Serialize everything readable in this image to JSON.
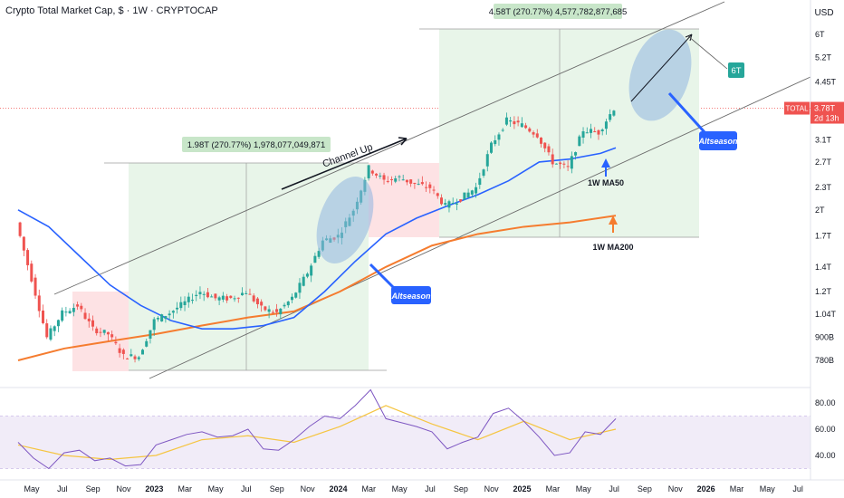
{
  "header": {
    "title": "Crypto Total Market Cap, $ · 1W · CRYPTOCAP",
    "currency": "USD"
  },
  "price_label": {
    "symbol": "TOTAL",
    "value": "3.78T",
    "countdown": "2d 13h"
  },
  "colors": {
    "up": "#26a69a",
    "down": "#ef5350",
    "ma50": "#2962ff",
    "ma200": "#f57c2f",
    "rsi": "#7e57c2",
    "rsi_ma": "#f5c542",
    "range_box": "#e8f5e9",
    "pink_box": "#fde2e4",
    "callout": "#2962ff",
    "target_badge": "#26a69a"
  },
  "chart_data": [
    {
      "type": "line",
      "y_axis": {
        "scale": "log",
        "ticks": [
          "6T",
          "5.2T",
          "4.45T",
          "3.78T",
          "3.1T",
          "2.7T",
          "2.3T",
          "2T",
          "1.7T",
          "1.4T",
          "1.2T",
          "1.04T",
          "900B",
          "780B"
        ]
      },
      "x_axis": {
        "ticks": [
          "May",
          "Jul",
          "Sep",
          "Nov",
          "2023",
          "Mar",
          "May",
          "Jul",
          "Sep",
          "Nov",
          "2024",
          "Mar",
          "May",
          "Jul",
          "Sep",
          "Nov",
          "2025",
          "Mar",
          "May",
          "Jul",
          "Sep",
          "Nov",
          "2026",
          "Mar",
          "May",
          "Jul"
        ]
      },
      "series": [
        {
          "name": "TOTAL",
          "x": [
            "2022-04",
            "2022-05",
            "2022-06",
            "2022-07",
            "2022-08",
            "2022-09",
            "2022-10",
            "2022-11",
            "2022-12",
            "2023-01",
            "2023-02",
            "2023-03",
            "2023-04",
            "2023-05",
            "2023-06",
            "2023-07",
            "2023-08",
            "2023-09",
            "2023-10",
            "2023-11",
            "2023-12",
            "2024-01",
            "2024-02",
            "2024-03",
            "2024-04",
            "2024-05",
            "2024-06",
            "2024-07",
            "2024-08",
            "2024-09",
            "2024-10",
            "2024-11",
            "2024-12",
            "2025-01",
            "2025-02",
            "2025-03",
            "2025-04",
            "2025-05",
            "2025-06",
            "2025-07"
          ],
          "y": [
            1.85,
            1.3,
            0.9,
            1.05,
            1.1,
            0.95,
            0.92,
            0.8,
            0.8,
            1.0,
            1.05,
            1.12,
            1.2,
            1.15,
            1.15,
            1.2,
            1.08,
            1.05,
            1.15,
            1.35,
            1.65,
            1.7,
            2.0,
            2.6,
            2.4,
            2.45,
            2.35,
            2.3,
            2.05,
            2.15,
            2.3,
            3.0,
            3.5,
            3.4,
            3.2,
            2.7,
            2.6,
            3.3,
            3.25,
            3.78
          ]
        },
        {
          "name": "1W MA50",
          "x": [
            "2022-04",
            "2022-06",
            "2022-08",
            "2022-10",
            "2022-12",
            "2023-02",
            "2023-04",
            "2023-06",
            "2023-08",
            "2023-10",
            "2023-12",
            "2024-02",
            "2024-04",
            "2024-06",
            "2024-08",
            "2024-10",
            "2024-12",
            "2025-02",
            "2025-04",
            "2025-06",
            "2025-07"
          ],
          "y": [
            2.0,
            1.8,
            1.5,
            1.25,
            1.1,
            1.0,
            0.95,
            0.95,
            0.97,
            1.02,
            1.2,
            1.45,
            1.72,
            1.9,
            2.05,
            2.2,
            2.4,
            2.7,
            2.75,
            2.85,
            2.95
          ]
        },
        {
          "name": "1W MA200",
          "x": [
            "2022-04",
            "2022-07",
            "2022-10",
            "2023-01",
            "2023-04",
            "2023-07",
            "2023-10",
            "2024-01",
            "2024-04",
            "2024-07",
            "2024-10",
            "2025-01",
            "2025-04",
            "2025-07"
          ],
          "y": [
            0.78,
            0.84,
            0.88,
            0.92,
            0.97,
            1.02,
            1.06,
            1.2,
            1.4,
            1.6,
            1.72,
            1.8,
            1.85,
            1.93
          ]
        }
      ],
      "annotations": [
        {
          "text": "1.98T (270.77%) 1,978,077,049,871"
        },
        {
          "text": "4.58T (270.77%) 4,577,782,877,685"
        },
        {
          "text": "Channel Up"
        },
        {
          "text": "1W MA50"
        },
        {
          "text": "1W MA200"
        },
        {
          "text": "Altseason"
        },
        {
          "text": "Altseason"
        },
        {
          "text": "6T"
        }
      ]
    },
    {
      "type": "line",
      "name": "RSI",
      "y_axis": {
        "ticks": [
          "80.00",
          "60.00",
          "40.00"
        ],
        "band": [
          30,
          70
        ]
      },
      "series": [
        {
          "name": "RSI",
          "x": [
            "2022-04",
            "2022-05",
            "2022-06",
            "2022-07",
            "2022-08",
            "2022-09",
            "2022-10",
            "2022-11",
            "2022-12",
            "2023-01",
            "2023-02",
            "2023-03",
            "2023-04",
            "2023-05",
            "2023-06",
            "2023-07",
            "2023-08",
            "2023-09",
            "2023-10",
            "2023-11",
            "2023-12",
            "2024-01",
            "2024-02",
            "2024-03",
            "2024-04",
            "2024-05",
            "2024-06",
            "2024-07",
            "2024-08",
            "2024-09",
            "2024-10",
            "2024-11",
            "2024-12",
            "2025-01",
            "2025-02",
            "2025-03",
            "2025-04",
            "2025-05",
            "2025-06",
            "2025-07"
          ],
          "y": [
            50,
            38,
            30,
            42,
            44,
            36,
            38,
            32,
            33,
            48,
            52,
            56,
            58,
            54,
            55,
            60,
            45,
            44,
            52,
            62,
            70,
            68,
            78,
            90,
            68,
            65,
            62,
            58,
            45,
            50,
            54,
            72,
            76,
            66,
            54,
            40,
            42,
            58,
            56,
            68
          ]
        },
        {
          "name": "RSI MA",
          "x": [
            "2022-04",
            "2022-07",
            "2022-10",
            "2023-01",
            "2023-04",
            "2023-07",
            "2023-10",
            "2024-01",
            "2024-04",
            "2024-07",
            "2024-10",
            "2025-01",
            "2025-04",
            "2025-07"
          ],
          "y": [
            48,
            40,
            37,
            40,
            52,
            55,
            50,
            62,
            78,
            64,
            52,
            66,
            52,
            60
          ]
        }
      ]
    }
  ]
}
